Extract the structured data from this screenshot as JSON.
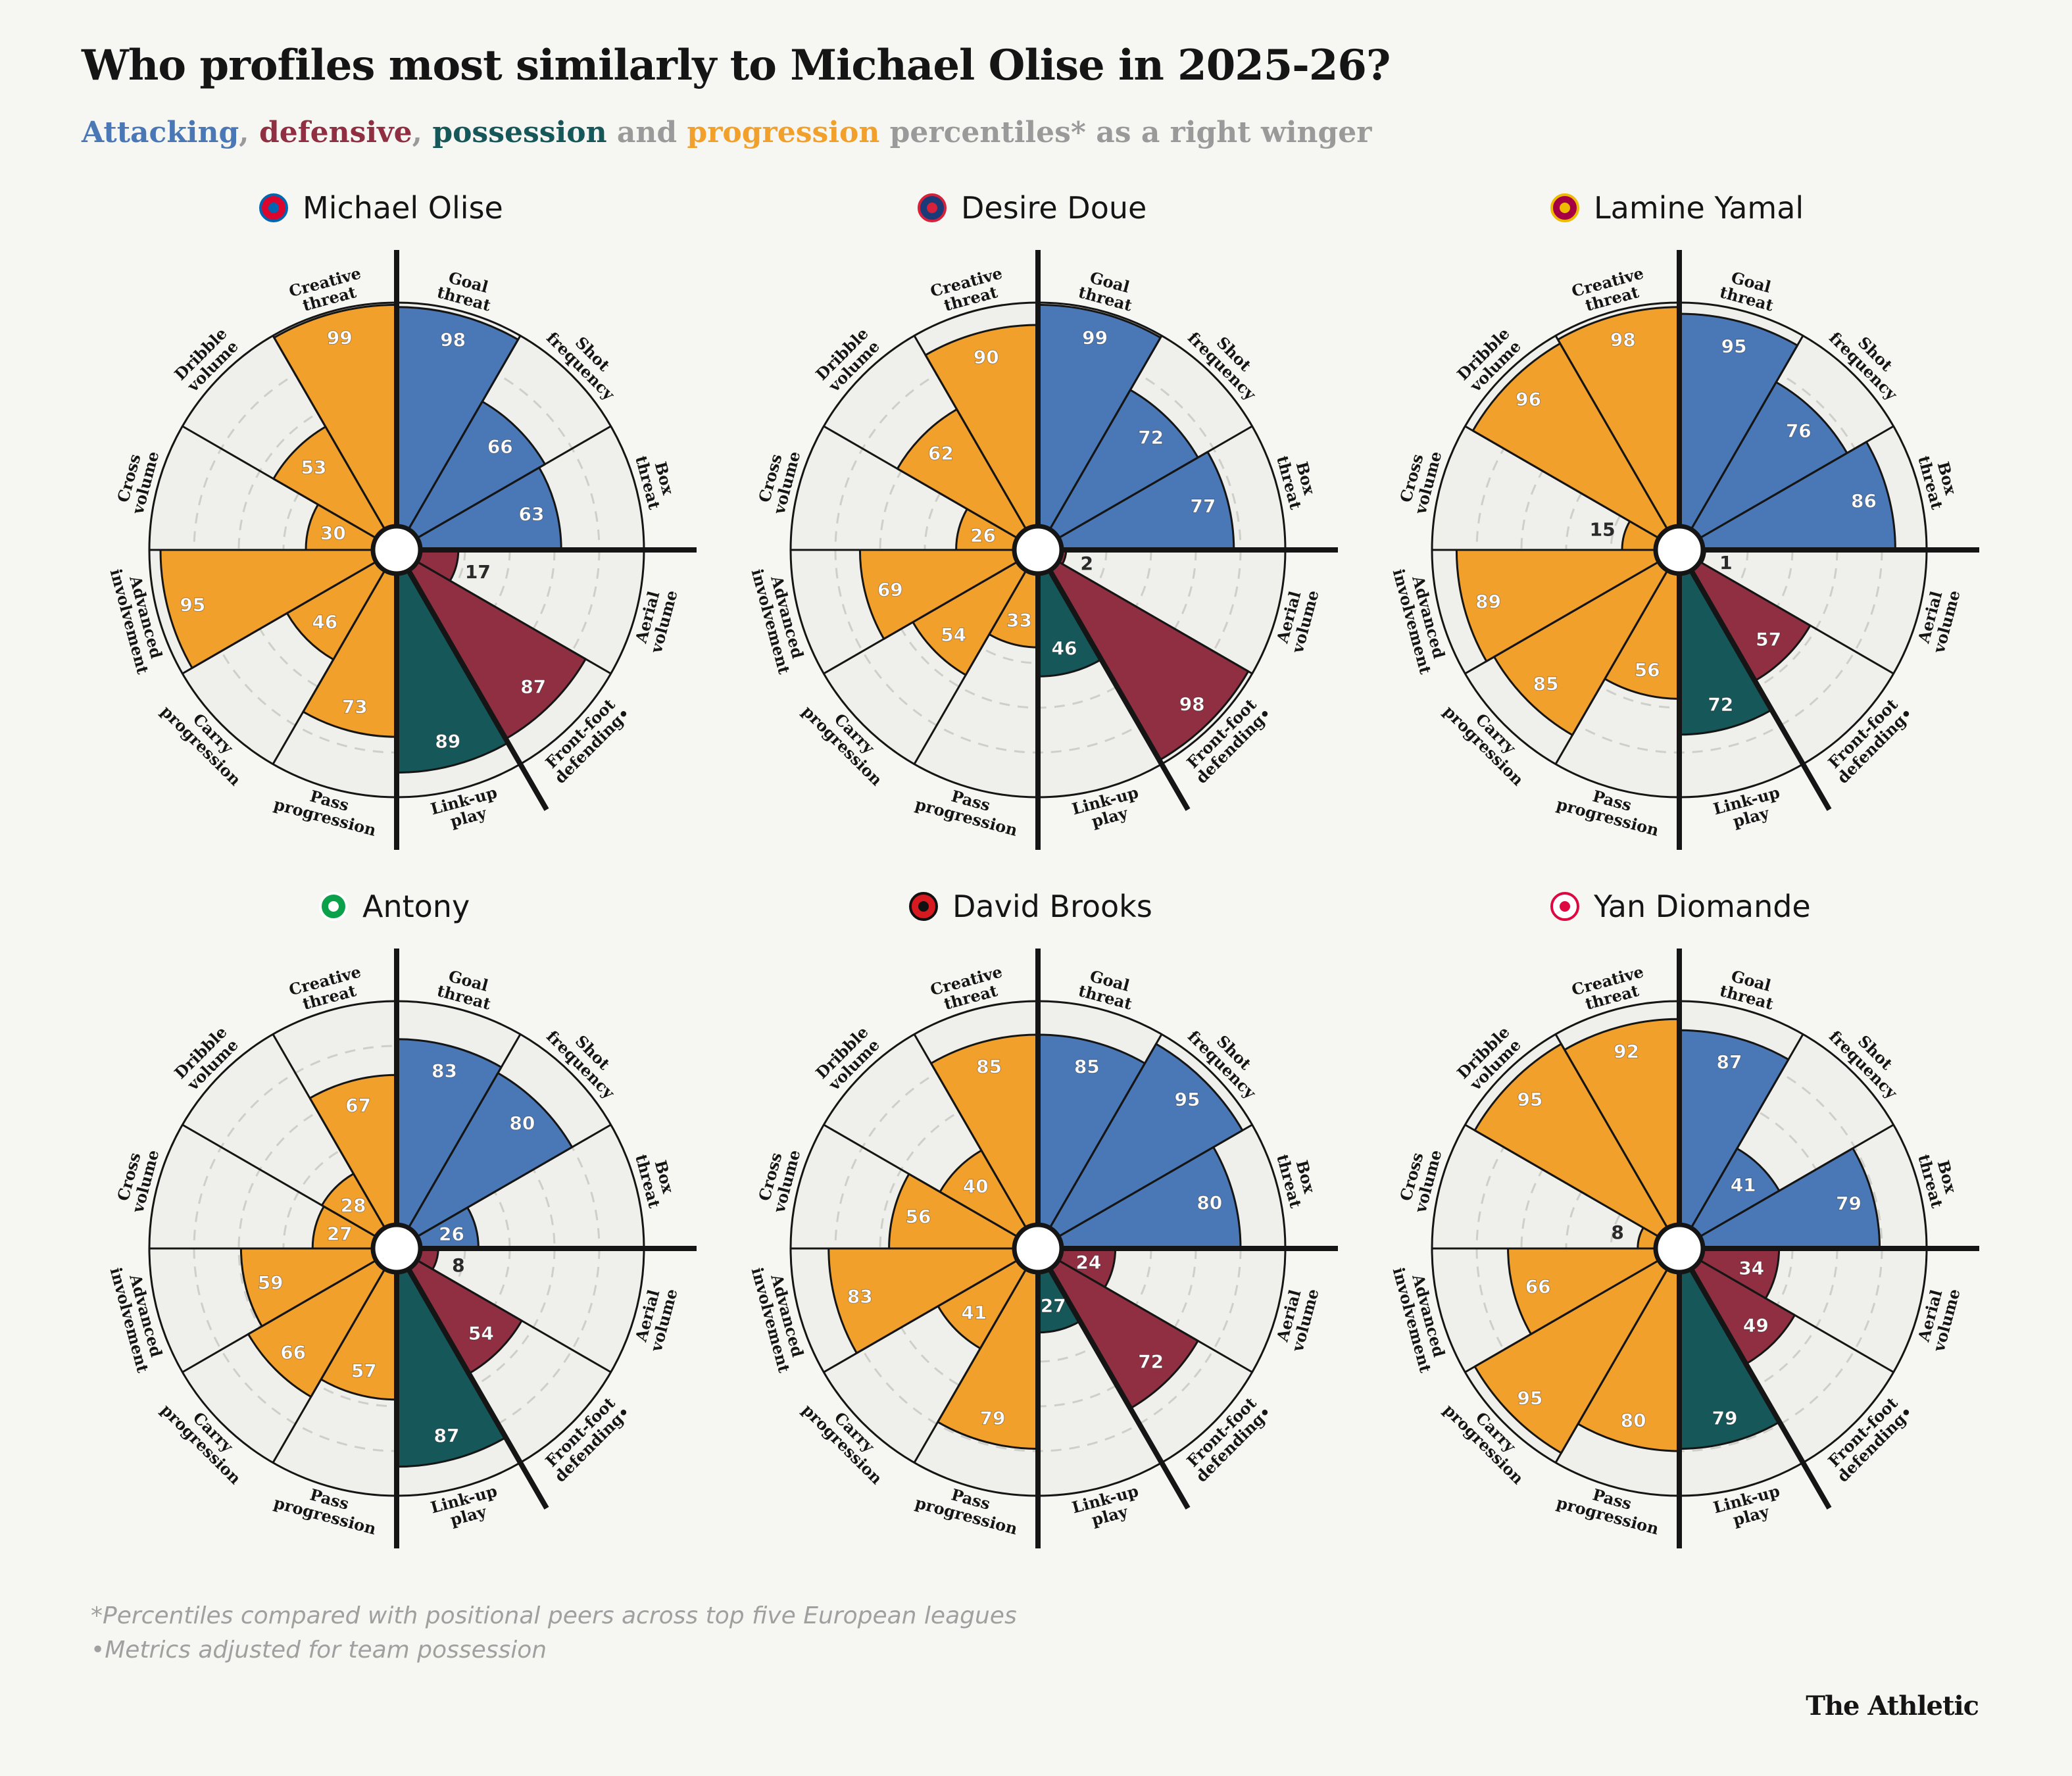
{
  "header": {
    "title": "Who profiles most similarly to Michael Olise in 2025-26?",
    "subtitle": {
      "attacking": "Attacking",
      "comma1": ",",
      "defensive": "defensive",
      "comma2": ",",
      "possession": "possession",
      "and": "and",
      "progression": "progression",
      "rest": "percentiles* as a right winger"
    }
  },
  "footnotes": {
    "line1": "*Percentiles compared with positional peers across top five European leagues",
    "line2": "•Metrics adjusted for team possession"
  },
  "brand": "The Athletic",
  "colors": {
    "attacking": "#4a78b6",
    "defensive": "#8f2f41",
    "possession": "#16575a",
    "progression": "#f2a02c",
    "grey_text": "#9a9a9a",
    "background": "#f6f6f2",
    "ring_fill": "#efefeb"
  },
  "chart_data": {
    "type": "radial-bar",
    "title": "Who profiles most similarly to Michael Olise in 2025-26?",
    "scale": [
      0,
      100
    ],
    "metrics": [
      {
        "label": "Goal threat",
        "group": "attacking"
      },
      {
        "label": "Shot frequency",
        "group": "attacking"
      },
      {
        "label": "Box threat",
        "group": "attacking"
      },
      {
        "label": "Aerial volume",
        "group": "defensive"
      },
      {
        "label": "Front-foot defending•",
        "group": "defensive"
      },
      {
        "label": "Link-up play",
        "group": "possession"
      },
      {
        "label": "Pass progression",
        "group": "progression"
      },
      {
        "label": "Carry progression",
        "group": "progression"
      },
      {
        "label": "Advanced involvement",
        "group": "progression"
      },
      {
        "label": "Cross volume",
        "group": "progression"
      },
      {
        "label": "Dribble volume",
        "group": "progression"
      },
      {
        "label": "Creative threat",
        "group": "progression"
      }
    ],
    "players": [
      {
        "name": "Michael Olise",
        "club_icon": "bayern-munich-crest-icon",
        "values": [
          98,
          66,
          63,
          17,
          87,
          89,
          73,
          46,
          95,
          30,
          53,
          99
        ]
      },
      {
        "name": "Desire Doue",
        "club_icon": "psg-crest-icon",
        "values": [
          99,
          72,
          77,
          2,
          98,
          46,
          33,
          54,
          69,
          26,
          62,
          90
        ]
      },
      {
        "name": "Lamine Yamal",
        "club_icon": "barcelona-crest-icon",
        "values": [
          95,
          76,
          86,
          1,
          57,
          72,
          56,
          85,
          89,
          15,
          96,
          98
        ]
      },
      {
        "name": "Antony",
        "club_icon": "real-betis-crest-icon",
        "values": [
          83,
          80,
          26,
          8,
          54,
          87,
          57,
          66,
          59,
          27,
          28,
          67
        ]
      },
      {
        "name": "David Brooks",
        "club_icon": "bournemouth-crest-icon",
        "values": [
          85,
          95,
          80,
          24,
          72,
          27,
          79,
          41,
          83,
          56,
          40,
          85
        ]
      },
      {
        "name": "Yan Diomande",
        "club_icon": "rb-leipzig-crest-icon",
        "values": [
          87,
          41,
          79,
          34,
          49,
          79,
          80,
          95,
          66,
          8,
          95,
          92
        ]
      }
    ]
  }
}
